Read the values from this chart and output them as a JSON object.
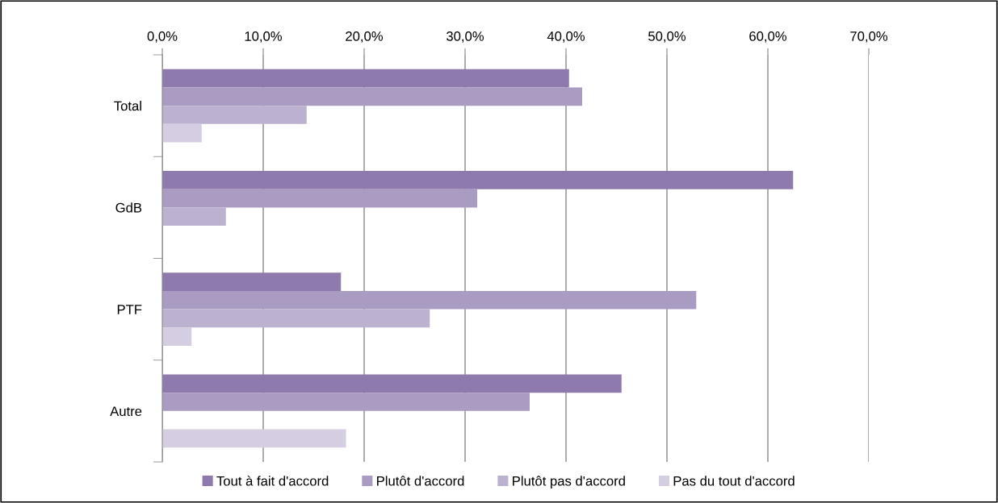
{
  "chart_data": {
    "type": "bar",
    "orientation": "horizontal",
    "categories": [
      "Total",
      "GdB",
      "PTF",
      "Autre"
    ],
    "series": [
      {
        "name": "Tout à fait d'accord",
        "color": "#8e7aad",
        "values": [
          40.3,
          62.5,
          17.7,
          45.5
        ]
      },
      {
        "name": "Plutôt d'accord",
        "color": "#a99bc1",
        "values": [
          41.6,
          31.2,
          52.9,
          36.4
        ]
      },
      {
        "name": "Plutôt pas d'accord",
        "color": "#bdb1d0",
        "values": [
          14.3,
          6.3,
          26.5,
          null
        ]
      },
      {
        "name": "Pas du tout d'accord",
        "color": "#d5cde2",
        "values": [
          3.9,
          null,
          2.9,
          18.2
        ]
      }
    ],
    "xlim": [
      0,
      70
    ],
    "xticks": [
      {
        "value": 0,
        "label": "0,0%"
      },
      {
        "value": 10,
        "label": "10,0%"
      },
      {
        "value": 20,
        "label": "20,0%"
      },
      {
        "value": 30,
        "label": "30,0%"
      },
      {
        "value": 40,
        "label": "40,0%"
      },
      {
        "value": 50,
        "label": "50,0%"
      },
      {
        "value": 60,
        "label": "60,0%"
      },
      {
        "value": 70,
        "label": "70,0%"
      }
    ],
    "grid": "x",
    "legend": "bottom"
  }
}
